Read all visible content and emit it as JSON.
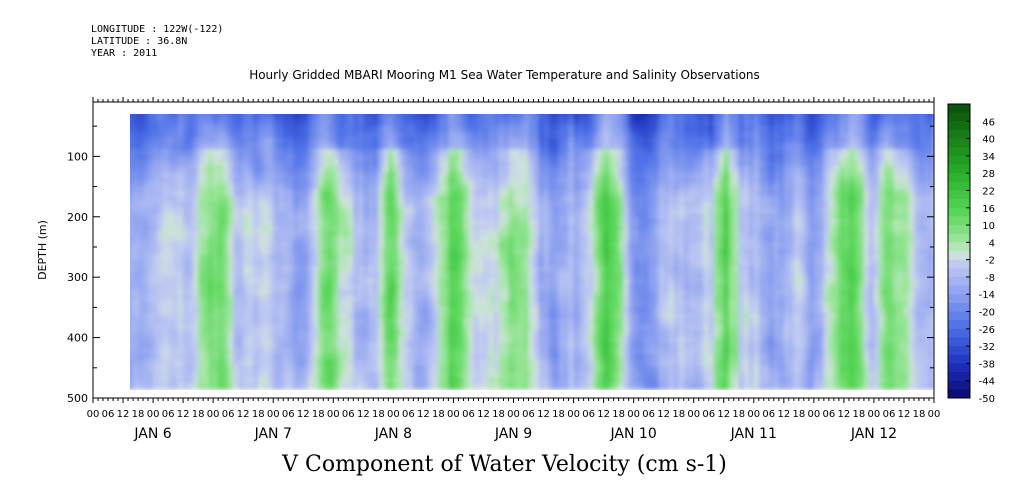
{
  "header": {
    "longitude": "LONGITUDE : 122W(-122)",
    "latitude": "LATITUDE : 36.8N",
    "year": "YEAR : 2011"
  },
  "chart_data": {
    "type": "heatmap",
    "title": "Hourly Gridded MBARI Mooring M1 Sea Water Temperature and Salinity Observations",
    "xlabel": "V Component of Water Velocity (cm s-1)",
    "ylabel": "DEPTH (m)",
    "yaxis": {
      "ticks": [
        100,
        200,
        300,
        400,
        500
      ],
      "range": [
        10,
        500
      ],
      "inverted": true
    },
    "xaxis": {
      "hour_ticks": [
        "00",
        "06",
        "12",
        "18",
        "00",
        "06",
        "12",
        "18",
        "00",
        "06",
        "12",
        "18",
        "00",
        "06",
        "12",
        "18",
        "00",
        "06",
        "12",
        "18",
        "00",
        "06",
        "12",
        "18",
        "00",
        "06",
        "12",
        "18",
        "00",
        "06",
        "12",
        "18",
        "00",
        "06",
        "12",
        "18",
        "00",
        "06",
        "12",
        "18",
        "00",
        "06",
        "12",
        "18",
        "00",
        "06",
        "12",
        "18",
        "00",
        "06",
        "12",
        "18",
        "00",
        "06",
        "12",
        "18",
        "00"
      ],
      "day_labels": [
        "JAN  6",
        "JAN  7",
        "JAN  8",
        "JAN  9",
        "JAN 10",
        "JAN 11",
        "JAN 12"
      ],
      "range_hours": [
        0,
        168
      ],
      "data_start_hour": 6,
      "data_end_hour": 168
    },
    "data_depth_range": [
      20,
      485
    ],
    "colorbar": {
      "levels": [
        46,
        40,
        34,
        28,
        22,
        16,
        10,
        4,
        -2,
        -8,
        -14,
        -20,
        -26,
        -32,
        -38,
        -44,
        -50
      ],
      "range": [
        -50,
        52
      ]
    },
    "description_values": {
      "near_surface_mean": -30,
      "deep_mean": -8,
      "strong_positive_columns_hours": [
        24,
        48,
        60,
        72,
        84,
        102,
        126,
        150,
        160
      ]
    },
    "colors": {
      "negative_deep": "#14148c",
      "negative_mid": "#4a6ee6",
      "negative_light": "#b4bef0",
      "near_zero": "#d2ebd2",
      "positive_light": "#8be68b",
      "positive_mid": "#2db42d",
      "positive_deep": "#0a500a"
    }
  }
}
